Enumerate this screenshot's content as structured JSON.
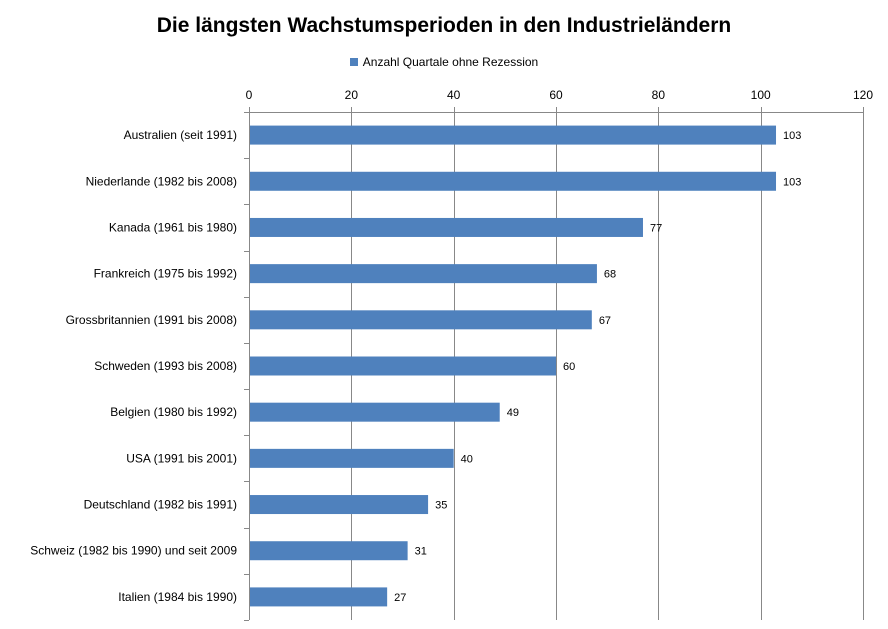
{
  "chart_data": {
    "type": "bar",
    "orientation": "horizontal",
    "title": "Die längsten Wachstumsperioden in den Industrieländern",
    "legend": "top",
    "grid": true,
    "xlim": [
      0,
      120
    ],
    "xticks": [
      0,
      20,
      40,
      60,
      80,
      100,
      120
    ],
    "categories": [
      "Australien (seit 1991)",
      "Niederlande (1982 bis 2008)",
      "Kanada (1961 bis 1980)",
      "Frankreich (1975 bis 1992)",
      "Grossbritannien (1991 bis 2008)",
      "Schweden (1993 bis 2008)",
      "Belgien (1980 bis 1992)",
      "USA (1991 bis 2001)",
      "Deutschland (1982 bis 1991)",
      "Schweiz (1982 bis 1990) und seit 2009",
      "Italien (1984 bis 1990)"
    ],
    "series": [
      {
        "name": "Anzahl Quartale ohne Rezession",
        "color": "#4f81bd",
        "values": [
          103,
          103,
          77,
          68,
          67,
          60,
          49,
          40,
          35,
          31,
          27
        ]
      }
    ]
  }
}
